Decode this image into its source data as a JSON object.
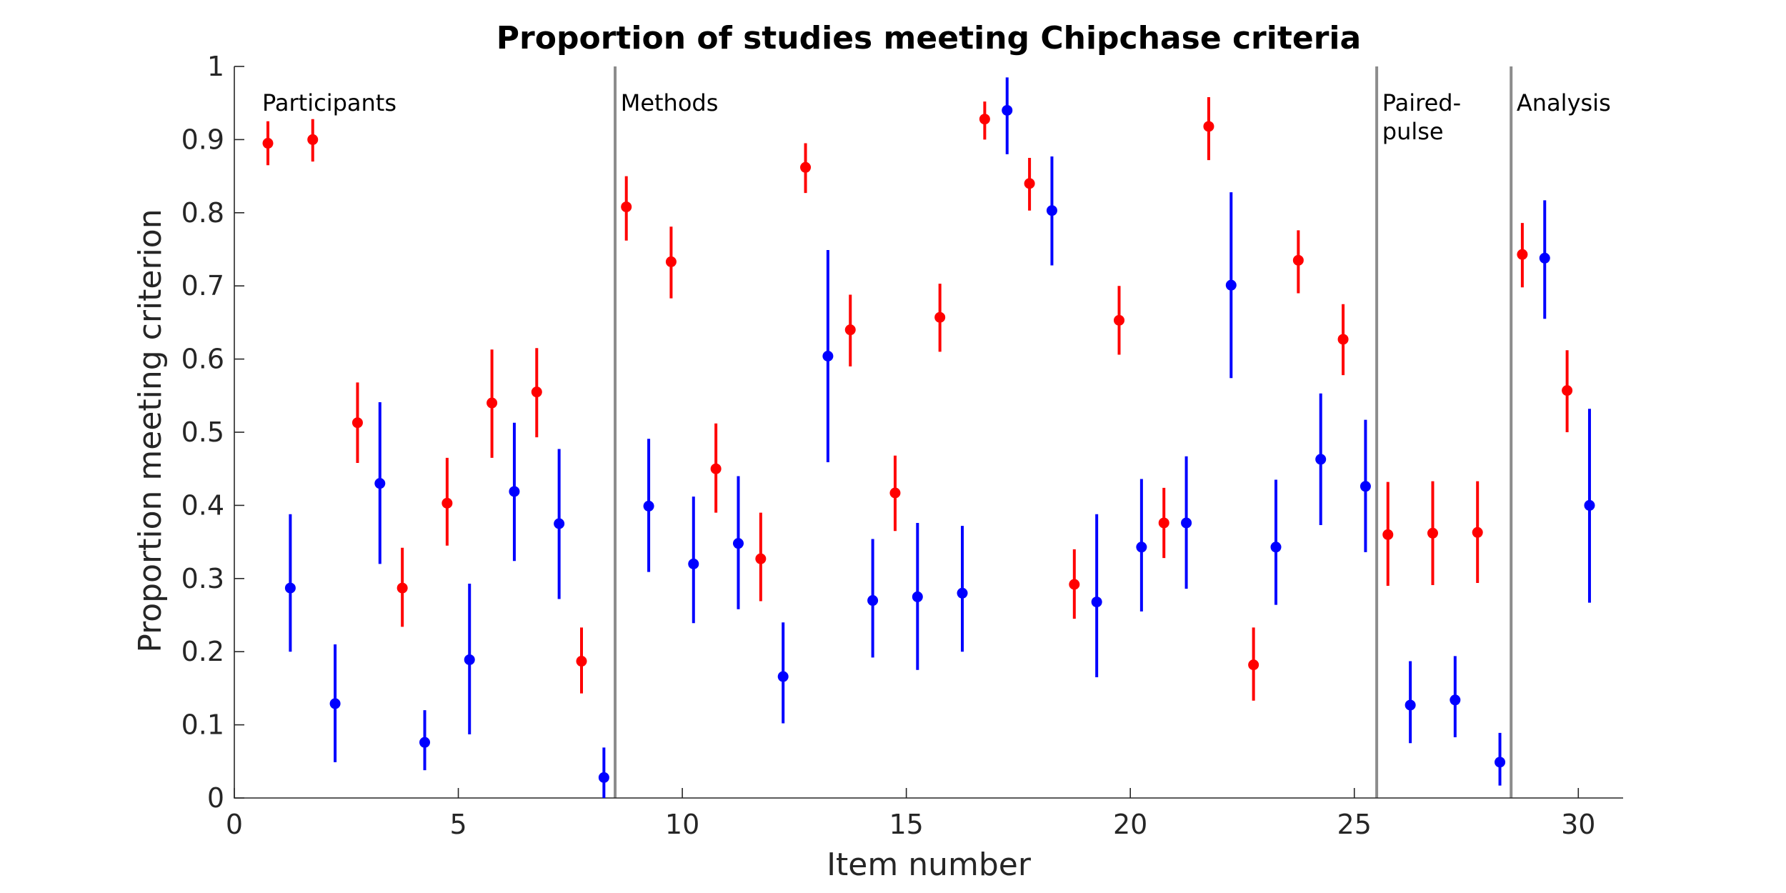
{
  "chart_data": {
    "type": "scatter",
    "title": "Proportion of studies meeting Chipchase criteria",
    "xlabel": "Item number",
    "ylabel": "Proportion meeting criterion",
    "xlim": [
      0,
      31
    ],
    "ylim": [
      0,
      1
    ],
    "xticks": [
      0,
      5,
      10,
      15,
      20,
      25,
      30
    ],
    "yticks": [
      0,
      0.1,
      0.2,
      0.3,
      0.4,
      0.5,
      0.6,
      0.7,
      0.8,
      0.9,
      1
    ],
    "ytick_labels": [
      "0",
      "0.1",
      "0.2",
      "0.3",
      "0.4",
      "0.5",
      "0.6",
      "0.7",
      "0.8",
      "0.9",
      "1"
    ],
    "xtick_labels": [
      "0",
      "5",
      "10",
      "15",
      "20",
      "25",
      "30"
    ],
    "grid": false,
    "section_dividers": [
      8.5,
      25.5,
      28.5
    ],
    "sections": [
      {
        "label_lines": [
          "Participants"
        ],
        "x": 0.75
      },
      {
        "label_lines": [
          "Methods"
        ],
        "x": 8.75
      },
      {
        "label_lines": [
          "Paired-",
          "pulse"
        ],
        "x": 25.75
      },
      {
        "label_lines": [
          "Analysis"
        ],
        "x": 28.75
      }
    ],
    "series": [
      {
        "color": "#ff0000",
        "points": [
          {
            "x": 0.75,
            "y": 0.895,
            "lo": 0.865,
            "hi": 0.925
          },
          {
            "x": 1.75,
            "y": 0.9,
            "lo": 0.87,
            "hi": 0.928
          },
          {
            "x": 2.75,
            "y": 0.513,
            "lo": 0.458,
            "hi": 0.568
          },
          {
            "x": 3.75,
            "y": 0.287,
            "lo": 0.234,
            "hi": 0.342
          },
          {
            "x": 4.75,
            "y": 0.403,
            "lo": 0.345,
            "hi": 0.465
          },
          {
            "x": 5.75,
            "y": 0.54,
            "lo": 0.465,
            "hi": 0.613
          },
          {
            "x": 6.75,
            "y": 0.555,
            "lo": 0.493,
            "hi": 0.615
          },
          {
            "x": 7.75,
            "y": 0.187,
            "lo": 0.143,
            "hi": 0.233
          },
          {
            "x": 8.75,
            "y": 0.808,
            "lo": 0.762,
            "hi": 0.85
          },
          {
            "x": 9.75,
            "y": 0.733,
            "lo": 0.683,
            "hi": 0.781
          },
          {
            "x": 10.75,
            "y": 0.45,
            "lo": 0.39,
            "hi": 0.512
          },
          {
            "x": 11.75,
            "y": 0.327,
            "lo": 0.269,
            "hi": 0.39
          },
          {
            "x": 12.75,
            "y": 0.862,
            "lo": 0.827,
            "hi": 0.895
          },
          {
            "x": 13.75,
            "y": 0.64,
            "lo": 0.59,
            "hi": 0.688
          },
          {
            "x": 14.75,
            "y": 0.417,
            "lo": 0.365,
            "hi": 0.468
          },
          {
            "x": 15.75,
            "y": 0.657,
            "lo": 0.61,
            "hi": 0.703
          },
          {
            "x": 16.75,
            "y": 0.928,
            "lo": 0.9,
            "hi": 0.952
          },
          {
            "x": 17.75,
            "y": 0.84,
            "lo": 0.803,
            "hi": 0.875
          },
          {
            "x": 18.75,
            "y": 0.292,
            "lo": 0.245,
            "hi": 0.34
          },
          {
            "x": 19.75,
            "y": 0.653,
            "lo": 0.606,
            "hi": 0.7
          },
          {
            "x": 20.75,
            "y": 0.376,
            "lo": 0.328,
            "hi": 0.424
          },
          {
            "x": 21.75,
            "y": 0.918,
            "lo": 0.872,
            "hi": 0.958
          },
          {
            "x": 22.75,
            "y": 0.182,
            "lo": 0.133,
            "hi": 0.233
          },
          {
            "x": 23.75,
            "y": 0.735,
            "lo": 0.69,
            "hi": 0.776
          },
          {
            "x": 24.75,
            "y": 0.627,
            "lo": 0.578,
            "hi": 0.675
          },
          {
            "x": 25.75,
            "y": 0.36,
            "lo": 0.29,
            "hi": 0.432
          },
          {
            "x": 26.75,
            "y": 0.362,
            "lo": 0.291,
            "hi": 0.433
          },
          {
            "x": 27.75,
            "y": 0.363,
            "lo": 0.294,
            "hi": 0.433
          },
          {
            "x": 28.75,
            "y": 0.743,
            "lo": 0.698,
            "hi": 0.786
          },
          {
            "x": 29.75,
            "y": 0.557,
            "lo": 0.5,
            "hi": 0.612
          }
        ]
      },
      {
        "color": "#0000ff",
        "points": [
          {
            "x": 1.25,
            "y": 0.287,
            "lo": 0.2,
            "hi": 0.388
          },
          {
            "x": 2.25,
            "y": 0.129,
            "lo": 0.049,
            "hi": 0.21
          },
          {
            "x": 3.25,
            "y": 0.43,
            "lo": 0.32,
            "hi": 0.541
          },
          {
            "x": 4.25,
            "y": 0.076,
            "lo": 0.038,
            "hi": 0.12
          },
          {
            "x": 5.25,
            "y": 0.189,
            "lo": 0.087,
            "hi": 0.293
          },
          {
            "x": 6.25,
            "y": 0.419,
            "lo": 0.324,
            "hi": 0.513
          },
          {
            "x": 7.25,
            "y": 0.375,
            "lo": 0.272,
            "hi": 0.477
          },
          {
            "x": 8.25,
            "y": 0.028,
            "lo": 0.0,
            "hi": 0.069
          },
          {
            "x": 9.25,
            "y": 0.399,
            "lo": 0.309,
            "hi": 0.491
          },
          {
            "x": 10.25,
            "y": 0.32,
            "lo": 0.239,
            "hi": 0.412
          },
          {
            "x": 11.25,
            "y": 0.348,
            "lo": 0.258,
            "hi": 0.44
          },
          {
            "x": 12.25,
            "y": 0.166,
            "lo": 0.102,
            "hi": 0.24
          },
          {
            "x": 13.25,
            "y": 0.604,
            "lo": 0.459,
            "hi": 0.749
          },
          {
            "x": 14.25,
            "y": 0.27,
            "lo": 0.192,
            "hi": 0.354
          },
          {
            "x": 15.25,
            "y": 0.275,
            "lo": 0.175,
            "hi": 0.376
          },
          {
            "x": 16.25,
            "y": 0.28,
            "lo": 0.2,
            "hi": 0.372
          },
          {
            "x": 17.25,
            "y": 0.94,
            "lo": 0.88,
            "hi": 0.985
          },
          {
            "x": 18.25,
            "y": 0.803,
            "lo": 0.728,
            "hi": 0.877
          },
          {
            "x": 19.25,
            "y": 0.268,
            "lo": 0.165,
            "hi": 0.388
          },
          {
            "x": 20.25,
            "y": 0.343,
            "lo": 0.255,
            "hi": 0.436
          },
          {
            "x": 21.25,
            "y": 0.376,
            "lo": 0.286,
            "hi": 0.467
          },
          {
            "x": 22.25,
            "y": 0.701,
            "lo": 0.574,
            "hi": 0.828
          },
          {
            "x": 23.25,
            "y": 0.343,
            "lo": 0.264,
            "hi": 0.435
          },
          {
            "x": 24.25,
            "y": 0.463,
            "lo": 0.373,
            "hi": 0.553
          },
          {
            "x": 25.25,
            "y": 0.426,
            "lo": 0.336,
            "hi": 0.517
          },
          {
            "x": 26.25,
            "y": 0.127,
            "lo": 0.075,
            "hi": 0.187
          },
          {
            "x": 27.25,
            "y": 0.134,
            "lo": 0.083,
            "hi": 0.194
          },
          {
            "x": 28.25,
            "y": 0.049,
            "lo": 0.017,
            "hi": 0.089
          },
          {
            "x": 29.25,
            "y": 0.738,
            "lo": 0.655,
            "hi": 0.817
          },
          {
            "x": 30.25,
            "y": 0.4,
            "lo": 0.267,
            "hi": 0.532
          }
        ]
      }
    ]
  }
}
